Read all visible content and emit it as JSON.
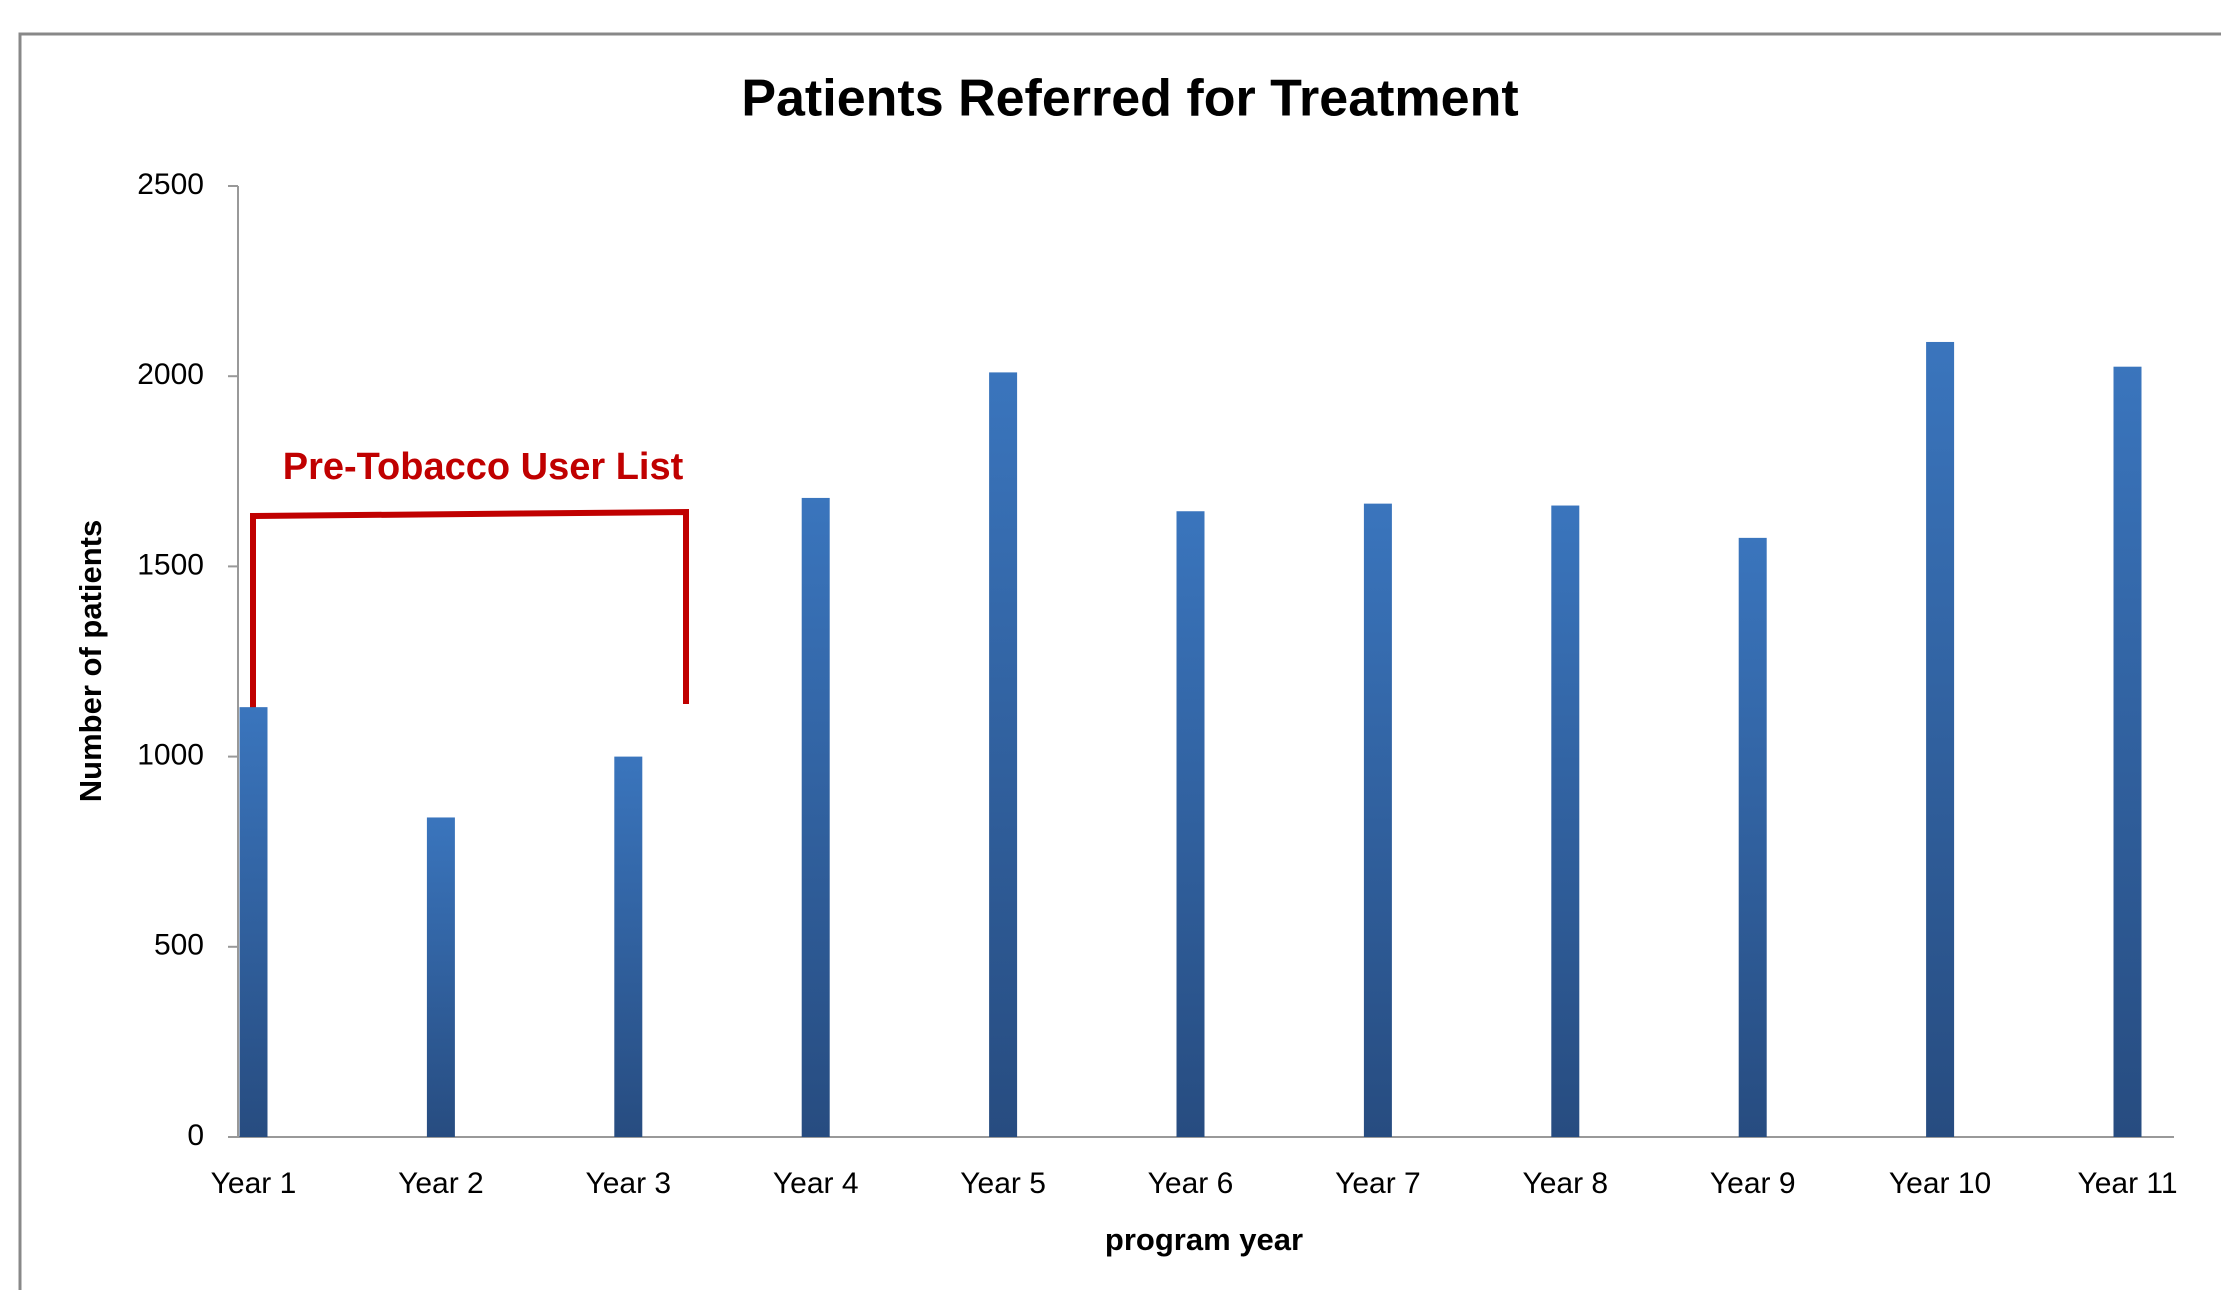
{
  "chart_data": {
    "type": "bar",
    "title": "Patients Referred for Treatment",
    "x_label": "program year",
    "y_label": "Number of patients",
    "annotation": "Pre-Tobacco User List",
    "categories": [
      "Year 1",
      "Year 2",
      "Year 3",
      "Year 4",
      "Year 5",
      "Year 6",
      "Year 7",
      "Year 8",
      "Year 9",
      "Year 10",
      "Year 11"
    ],
    "values": [
      1130,
      840,
      1000,
      1680,
      2010,
      1645,
      1665,
      1660,
      1575,
      2090,
      2025
    ],
    "color": "#3a75bd",
    "ylim": [
      0,
      2500
    ],
    "yticks": [
      0,
      500,
      1000,
      1500,
      2000,
      2500
    ],
    "grid": false
  }
}
